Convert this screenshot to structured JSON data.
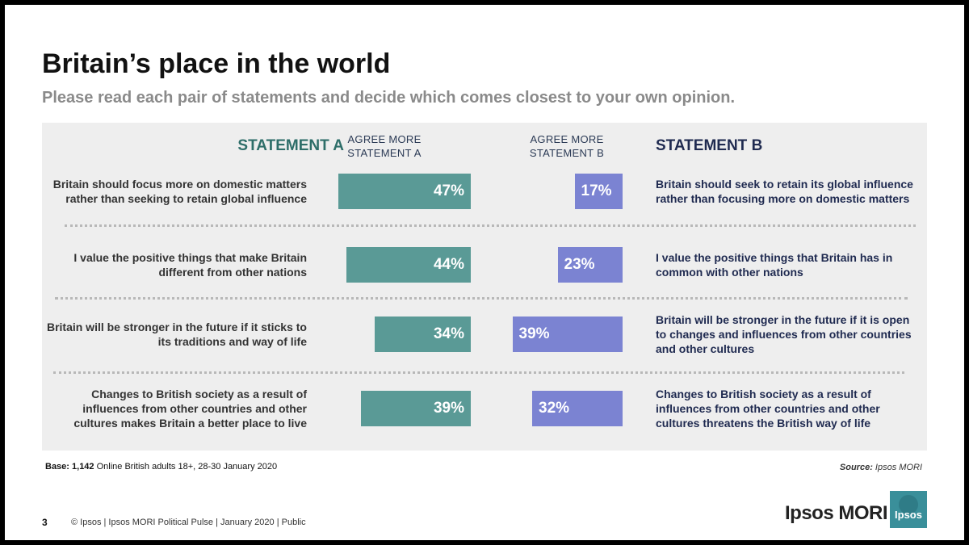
{
  "title": "Britain’s place in the world",
  "subtitle": "Please read each pair of statements and decide which comes closest to your own opinion.",
  "header": {
    "statement_a": "STATEMENT A",
    "statement_b": "STATEMENT B",
    "agree_a_line1": "AGREE MORE",
    "agree_a_line2": "STATEMENT A",
    "agree_b_line1": "AGREE MORE",
    "agree_b_line2": "STATEMENT B"
  },
  "rows": [
    {
      "statement_a": "Britain should focus more on domestic matters rather than seeking to retain global influence",
      "statement_b": "Britain should seek to retain its global influence rather than focusing more on domestic matters",
      "value_a_label": "47%",
      "value_b_label": "17%"
    },
    {
      "statement_a": "I value the positive things that make Britain different from other nations",
      "statement_b": "I value the positive things that Britain has in common with other nations",
      "value_a_label": "44%",
      "value_b_label": "23%"
    },
    {
      "statement_a": "Britain will be stronger in the future if it sticks to its traditions and way of life",
      "statement_b": "Britain will be stronger in the future if it is open to changes and influences from other countries and other cultures",
      "value_a_label": "34%",
      "value_b_label": "39%"
    },
    {
      "statement_a": "Changes to British society as a result of influences from other countries and other cultures makes Britain a better place to live",
      "statement_b": "Changes to British society as a result of influences from other countries and other cultures threatens the British way of life",
      "value_a_label": "39%",
      "value_b_label": "32%"
    }
  ],
  "chart_data": {
    "type": "bar",
    "categories": [
      "Britain should focus more on domestic matters rather than seeking to retain global influence",
      "I value the positive things that make Britain different from other nations",
      "Britain will be stronger in the future if it sticks to its traditions and way of life",
      "Changes to British society as a result of influences from other countries and other cultures makes Britain a better place to live"
    ],
    "series": [
      {
        "name": "AGREE MORE STATEMENT A",
        "values": [
          47,
          44,
          34,
          39
        ],
        "color": "#5a9a96"
      },
      {
        "name": "AGREE MORE STATEMENT B",
        "values": [
          17,
          23,
          39,
          32
        ],
        "color": "#7b83d2"
      }
    ],
    "unit": "%"
  },
  "base": {
    "bold": "Base: 1,142",
    "text": " Online British adults 18+, 28-30 January 2020"
  },
  "source": {
    "bold": "Source:",
    "text": " Ipsos MORI"
  },
  "footer": {
    "page_number": "3",
    "text": "© Ipsos | Ipsos MORI Political Pulse | January 2020 | Public"
  },
  "brand": {
    "name": "Ipsos MORI",
    "logo_text": "Ipsos",
    "logo_color": "#3a8f9a"
  }
}
